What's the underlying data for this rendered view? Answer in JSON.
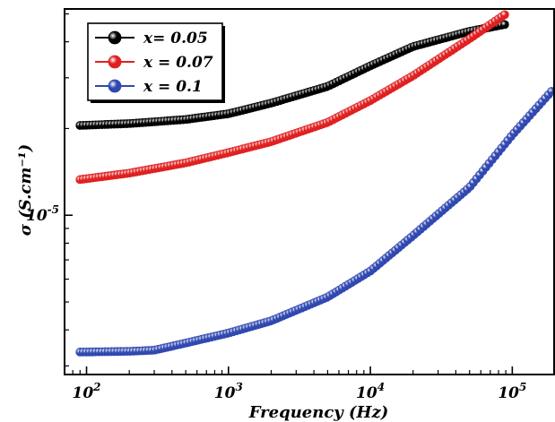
{
  "chart_data": {
    "type": "scatter",
    "xlabel": "Frequency (Hz)",
    "ylabel": "σ (S.cm⁻¹)",
    "x_scale": "log",
    "y_scale": "log",
    "xlim": [
      70,
      200000
    ],
    "ylim": [
      2.8e-06,
      5.2e-05
    ],
    "x_ticks": [
      {
        "value": 100,
        "base": "10",
        "exp": "2"
      },
      {
        "value": 1000,
        "base": "10",
        "exp": "3"
      },
      {
        "value": 10000,
        "base": "10",
        "exp": "4"
      },
      {
        "value": 100000,
        "base": "10",
        "exp": "5"
      }
    ],
    "y_ticks": [
      {
        "value": 1e-05,
        "base": "10",
        "exp": "-5"
      }
    ],
    "grid": false,
    "legend_position": "top-left",
    "series": [
      {
        "name": "x= 0.05",
        "color": "#000000",
        "x": [
          90,
          200,
          500,
          1000,
          2000,
          5000,
          10000,
          20000,
          50000,
          90000
        ],
        "y": [
          2.05e-05,
          2.08e-05,
          2.15e-05,
          2.25e-05,
          2.45e-05,
          2.8e-05,
          3.3e-05,
          3.85e-05,
          4.35e-05,
          4.6e-05
        ]
      },
      {
        "name": "x = 0.07",
        "color": "#e02020",
        "x": [
          90,
          200,
          500,
          1000,
          2000,
          5000,
          10000,
          20000,
          50000,
          90000
        ],
        "y": [
          1.33e-05,
          1.4e-05,
          1.52e-05,
          1.65e-05,
          1.8e-05,
          2.1e-05,
          2.5e-05,
          3.05e-05,
          4.1e-05,
          5e-05
        ]
      },
      {
        "name": "x = 0.1",
        "color": "#3048b0",
        "x": [
          90,
          200,
          300,
          500,
          1000,
          2000,
          5000,
          10000,
          20000,
          50000,
          100000,
          190000
        ],
        "y": [
          3.35e-06,
          3.37e-06,
          3.4e-06,
          3.6e-06,
          3.9e-06,
          4.3e-06,
          5.2e-06,
          6.4e-06,
          8.5e-06,
          1.25e-05,
          1.9e-05,
          2.7e-05
        ]
      }
    ]
  }
}
